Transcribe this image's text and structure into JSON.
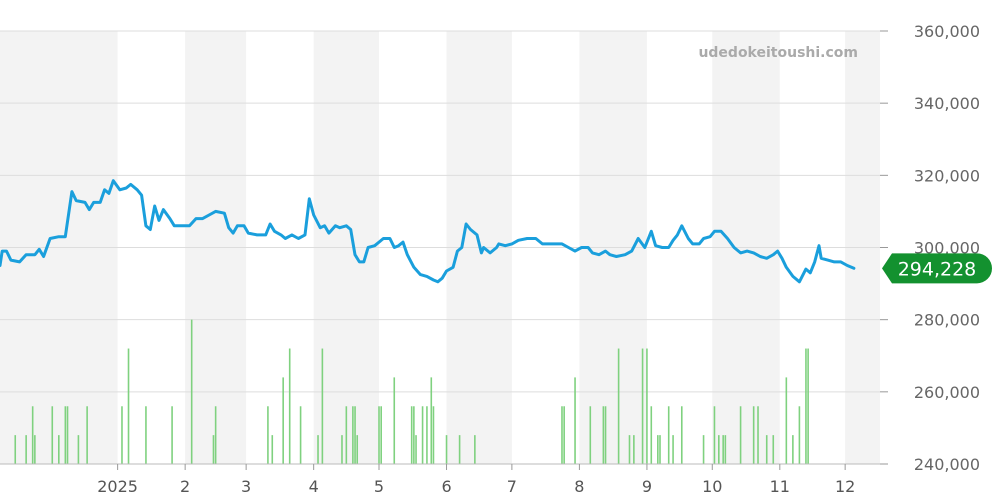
{
  "chart_data": {
    "type": "line",
    "watermark": "udedokeitoushi.com",
    "y_axis": {
      "min": 240000,
      "max": 360000,
      "ticks": [
        240000,
        260000,
        280000,
        300000,
        320000,
        340000,
        360000
      ],
      "tick_labels": [
        "240,000",
        "260,000",
        "280,000",
        "300,000",
        "320,000",
        "340,000",
        "360,000"
      ],
      "position": "right",
      "grid": true
    },
    "x_axis": {
      "type": "date",
      "range": [
        "2024-11-08",
        "2025-12-17"
      ],
      "ticks": [
        {
          "label": "2025",
          "date": "2025-01-01"
        },
        {
          "label": "2",
          "date": "2025-02-01"
        },
        {
          "label": "3",
          "date": "2025-03-01"
        },
        {
          "label": "4",
          "date": "2025-04-01"
        },
        {
          "label": "5",
          "date": "2025-05-01"
        },
        {
          "label": "6",
          "date": "2025-06-01"
        },
        {
          "label": "7",
          "date": "2025-07-01"
        },
        {
          "label": "8",
          "date": "2025-08-01"
        },
        {
          "label": "9",
          "date": "2025-09-01"
        },
        {
          "label": "10",
          "date": "2025-10-01"
        },
        {
          "label": "11",
          "date": "2025-11-01"
        },
        {
          "label": "12",
          "date": "2025-12-01"
        }
      ],
      "alternating_month_bands": true
    },
    "last_value": {
      "value": 294228,
      "label": "294,228"
    },
    "colors": {
      "price_line": "#1a9fdc",
      "volume_bars": "#7fd17f",
      "last_value_badge": "#13912f",
      "band": "#f3f3f3",
      "grid": "#dddddd"
    },
    "series": [
      {
        "type": "line",
        "points": [
          [
            "2024-11-08",
            295000
          ],
          [
            "2024-11-09",
            299000
          ],
          [
            "2024-11-11",
            299000
          ],
          [
            "2024-11-13",
            296500
          ],
          [
            "2024-11-17",
            296000
          ],
          [
            "2024-11-20",
            298000
          ],
          [
            "2024-11-24",
            298000
          ],
          [
            "2024-11-26",
            299500
          ],
          [
            "2024-11-28",
            297500
          ],
          [
            "2024-12-01",
            302500
          ],
          [
            "2024-12-05",
            303000
          ],
          [
            "2024-12-08",
            303000
          ],
          [
            "2024-12-11",
            315500
          ],
          [
            "2024-12-13",
            313000
          ],
          [
            "2024-12-17",
            312500
          ],
          [
            "2024-12-19",
            310500
          ],
          [
            "2024-12-21",
            312500
          ],
          [
            "2024-12-24",
            312500
          ],
          [
            "2024-12-26",
            316000
          ],
          [
            "2024-12-28",
            315000
          ],
          [
            "2024-12-30",
            318500
          ],
          [
            "2025-01-02",
            316000
          ],
          [
            "2025-01-05",
            316500
          ],
          [
            "2025-01-07",
            317500
          ],
          [
            "2025-01-10",
            316000
          ],
          [
            "2025-01-12",
            314500
          ],
          [
            "2025-01-14",
            306000
          ],
          [
            "2025-01-16",
            305000
          ],
          [
            "2025-01-18",
            311500
          ],
          [
            "2025-01-20",
            307500
          ],
          [
            "2025-01-22",
            310500
          ],
          [
            "2025-01-25",
            308000
          ],
          [
            "2025-01-27",
            306000
          ],
          [
            "2025-01-30",
            306000
          ],
          [
            "2025-02-03",
            306000
          ],
          [
            "2025-02-06",
            308000
          ],
          [
            "2025-02-09",
            308000
          ],
          [
            "2025-02-12",
            309000
          ],
          [
            "2025-02-15",
            310000
          ],
          [
            "2025-02-19",
            309500
          ],
          [
            "2025-02-21",
            305500
          ],
          [
            "2025-02-23",
            304000
          ],
          [
            "2025-02-25",
            306000
          ],
          [
            "2025-02-28",
            306000
          ],
          [
            "2025-03-02",
            304000
          ],
          [
            "2025-03-06",
            303500
          ],
          [
            "2025-03-10",
            303500
          ],
          [
            "2025-03-12",
            306500
          ],
          [
            "2025-03-14",
            304500
          ],
          [
            "2025-03-17",
            303500
          ],
          [
            "2025-03-19",
            302500
          ],
          [
            "2025-03-22",
            303500
          ],
          [
            "2025-03-25",
            302500
          ],
          [
            "2025-03-28",
            303500
          ],
          [
            "2025-03-30",
            313500
          ],
          [
            "2025-04-01",
            309000
          ],
          [
            "2025-04-04",
            305500
          ],
          [
            "2025-04-06",
            306000
          ],
          [
            "2025-04-08",
            304000
          ],
          [
            "2025-04-11",
            306000
          ],
          [
            "2025-04-13",
            305500
          ],
          [
            "2025-04-16",
            306000
          ],
          [
            "2025-04-18",
            305000
          ],
          [
            "2025-04-20",
            298000
          ],
          [
            "2025-04-22",
            296000
          ],
          [
            "2025-04-24",
            296000
          ],
          [
            "2025-04-26",
            300000
          ],
          [
            "2025-04-29",
            300500
          ],
          [
            "2025-05-01",
            301500
          ],
          [
            "2025-05-03",
            302500
          ],
          [
            "2025-05-06",
            302500
          ],
          [
            "2025-05-08",
            300000
          ],
          [
            "2025-05-10",
            300500
          ],
          [
            "2025-05-12",
            301500
          ],
          [
            "2025-05-14",
            298000
          ],
          [
            "2025-05-17",
            294500
          ],
          [
            "2025-05-20",
            292500
          ],
          [
            "2025-05-23",
            292000
          ],
          [
            "2025-05-26",
            291000
          ],
          [
            "2025-05-28",
            290500
          ],
          [
            "2025-05-30",
            291500
          ],
          [
            "2025-06-01",
            293500
          ],
          [
            "2025-06-04",
            294500
          ],
          [
            "2025-06-06",
            299000
          ],
          [
            "2025-06-08",
            300000
          ],
          [
            "2025-06-10",
            306500
          ],
          [
            "2025-06-12",
            305000
          ],
          [
            "2025-06-15",
            303500
          ],
          [
            "2025-06-17",
            298500
          ],
          [
            "2025-06-18",
            300000
          ],
          [
            "2025-06-21",
            298500
          ],
          [
            "2025-06-24",
            300000
          ],
          [
            "2025-06-25",
            301000
          ],
          [
            "2025-06-28",
            300500
          ],
          [
            "2025-07-01",
            301000
          ],
          [
            "2025-07-04",
            302000
          ],
          [
            "2025-07-08",
            302500
          ],
          [
            "2025-07-12",
            302500
          ],
          [
            "2025-07-15",
            301000
          ],
          [
            "2025-07-19",
            301000
          ],
          [
            "2025-07-24",
            301000
          ],
          [
            "2025-07-27",
            300000
          ],
          [
            "2025-07-30",
            299000
          ],
          [
            "2025-08-02",
            300000
          ],
          [
            "2025-08-05",
            300000
          ],
          [
            "2025-08-07",
            298500
          ],
          [
            "2025-08-10",
            298000
          ],
          [
            "2025-08-13",
            299000
          ],
          [
            "2025-08-15",
            298000
          ],
          [
            "2025-08-18",
            297500
          ],
          [
            "2025-08-22",
            298000
          ],
          [
            "2025-08-25",
            299000
          ],
          [
            "2025-08-28",
            302500
          ],
          [
            "2025-08-31",
            300000
          ],
          [
            "2025-09-03",
            304500
          ],
          [
            "2025-09-05",
            300500
          ],
          [
            "2025-09-08",
            300000
          ],
          [
            "2025-09-11",
            300000
          ],
          [
            "2025-09-13",
            302000
          ],
          [
            "2025-09-15",
            303500
          ],
          [
            "2025-09-17",
            306000
          ],
          [
            "2025-09-20",
            302500
          ],
          [
            "2025-09-22",
            301000
          ],
          [
            "2025-09-25",
            301000
          ],
          [
            "2025-09-27",
            302500
          ],
          [
            "2025-09-30",
            303000
          ],
          [
            "2025-10-02",
            304500
          ],
          [
            "2025-10-05",
            304500
          ],
          [
            "2025-10-08",
            302500
          ],
          [
            "2025-10-11",
            300000
          ],
          [
            "2025-10-14",
            298500
          ],
          [
            "2025-10-17",
            299000
          ],
          [
            "2025-10-20",
            298500
          ],
          [
            "2025-10-23",
            297500
          ],
          [
            "2025-10-26",
            297000
          ],
          [
            "2025-10-29",
            298000
          ],
          [
            "2025-10-31",
            299000
          ],
          [
            "2025-11-02",
            297000
          ],
          [
            "2025-11-04",
            294500
          ],
          [
            "2025-11-07",
            292000
          ],
          [
            "2025-11-10",
            290500
          ],
          [
            "2025-11-13",
            294000
          ],
          [
            "2025-11-15",
            293000
          ],
          [
            "2025-11-17",
            296000
          ],
          [
            "2025-11-19",
            300500
          ],
          [
            "2025-11-20",
            297000
          ],
          [
            "2025-11-23",
            296500
          ],
          [
            "2025-11-26",
            296000
          ],
          [
            "2025-11-29",
            296000
          ],
          [
            "2025-12-02",
            295000
          ],
          [
            "2025-12-05",
            294228
          ]
        ]
      },
      {
        "type": "bar",
        "values_in_axis_units": true,
        "points": [
          [
            "2024-11-15",
            248000
          ],
          [
            "2024-11-20",
            248000
          ],
          [
            "2024-11-23",
            256000
          ],
          [
            "2024-11-24",
            248000
          ],
          [
            "2024-12-02",
            256000
          ],
          [
            "2024-12-05",
            248000
          ],
          [
            "2024-12-08",
            256000
          ],
          [
            "2024-12-09",
            256000
          ],
          [
            "2024-12-14",
            248000
          ],
          [
            "2024-12-18",
            256000
          ],
          [
            "2025-01-03",
            256000
          ],
          [
            "2025-01-06",
            272000
          ],
          [
            "2025-01-14",
            256000
          ],
          [
            "2025-01-26",
            256000
          ],
          [
            "2025-02-04",
            280000
          ],
          [
            "2025-02-14",
            248000
          ],
          [
            "2025-02-15",
            256000
          ],
          [
            "2025-03-11",
            256000
          ],
          [
            "2025-03-13",
            248000
          ],
          [
            "2025-03-18",
            264000
          ],
          [
            "2025-03-21",
            272000
          ],
          [
            "2025-03-26",
            256000
          ],
          [
            "2025-04-03",
            248000
          ],
          [
            "2025-04-05",
            272000
          ],
          [
            "2025-04-14",
            248000
          ],
          [
            "2025-04-16",
            256000
          ],
          [
            "2025-04-19",
            256000
          ],
          [
            "2025-04-20",
            256000
          ],
          [
            "2025-04-21",
            248000
          ],
          [
            "2025-05-01",
            256000
          ],
          [
            "2025-05-02",
            256000
          ],
          [
            "2025-05-08",
            264000
          ],
          [
            "2025-05-16",
            256000
          ],
          [
            "2025-05-17",
            256000
          ],
          [
            "2025-05-18",
            248000
          ],
          [
            "2025-05-21",
            256000
          ],
          [
            "2025-05-23",
            256000
          ],
          [
            "2025-05-25",
            264000
          ],
          [
            "2025-05-26",
            256000
          ],
          [
            "2025-06-01",
            248000
          ],
          [
            "2025-06-07",
            248000
          ],
          [
            "2025-06-14",
            248000
          ],
          [
            "2025-07-24",
            256000
          ],
          [
            "2025-07-25",
            256000
          ],
          [
            "2025-07-30",
            264000
          ],
          [
            "2025-08-06",
            256000
          ],
          [
            "2025-08-12",
            256000
          ],
          [
            "2025-08-13",
            256000
          ],
          [
            "2025-08-19",
            272000
          ],
          [
            "2025-08-24",
            248000
          ],
          [
            "2025-08-26",
            248000
          ],
          [
            "2025-08-30",
            272000
          ],
          [
            "2025-09-01",
            272000
          ],
          [
            "2025-09-03",
            256000
          ],
          [
            "2025-09-06",
            248000
          ],
          [
            "2025-09-07",
            248000
          ],
          [
            "2025-09-11",
            256000
          ],
          [
            "2025-09-13",
            248000
          ],
          [
            "2025-09-17",
            256000
          ],
          [
            "2025-09-27",
            248000
          ],
          [
            "2025-10-02",
            256000
          ],
          [
            "2025-10-04",
            248000
          ],
          [
            "2025-10-06",
            248000
          ],
          [
            "2025-10-07",
            248000
          ],
          [
            "2025-10-14",
            256000
          ],
          [
            "2025-10-20",
            256000
          ],
          [
            "2025-10-22",
            256000
          ],
          [
            "2025-10-26",
            248000
          ],
          [
            "2025-10-29",
            248000
          ],
          [
            "2025-11-04",
            264000
          ],
          [
            "2025-11-07",
            248000
          ],
          [
            "2025-11-10",
            256000
          ],
          [
            "2025-11-13",
            272000
          ],
          [
            "2025-11-14",
            272000
          ]
        ]
      }
    ]
  }
}
